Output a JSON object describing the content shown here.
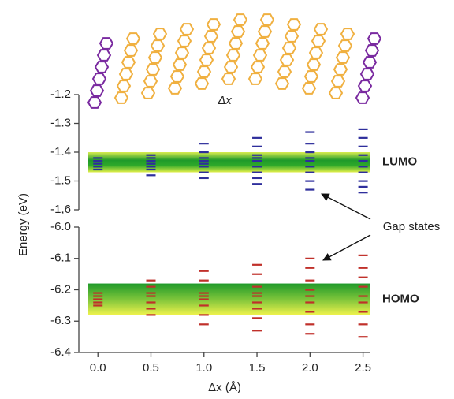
{
  "illustration": {
    "label": "Δx"
  },
  "chart_data": [
    {
      "type": "scatter",
      "ylabel": "Energy (eV)",
      "annotation": "Gap states",
      "band": [
        -1.47,
        -1.4
      ],
      "band_label": "LUMO",
      "color": "#2e2e9c",
      "xlim": [
        -0.18,
        2.57
      ],
      "ylim": [
        -1.6,
        -1.2
      ],
      "yticks": [
        -1.2,
        -1.3,
        -1.4,
        -1.5,
        {
          "value": -1.6,
          "label": "-1,6"
        }
      ],
      "x": [
        0,
        0,
        0,
        0,
        0,
        0.5,
        0.5,
        0.5,
        0.5,
        0.5,
        0.5,
        0.5,
        1,
        1,
        1,
        1,
        1,
        1,
        1,
        1,
        1.5,
        1.5,
        1.5,
        1.5,
        1.5,
        1.5,
        1.5,
        1.5,
        1.5,
        2,
        2,
        2,
        2,
        2,
        2,
        2,
        2,
        2,
        2.5,
        2.5,
        2.5,
        2.5,
        2.5,
        2.5,
        2.5,
        2.5,
        2.5,
        2.5
      ],
      "y": [
        -1.42,
        -1.43,
        -1.44,
        -1.45,
        -1.46,
        -1.41,
        -1.42,
        -1.43,
        -1.44,
        -1.45,
        -1.46,
        -1.48,
        -1.37,
        -1.4,
        -1.42,
        -1.43,
        -1.44,
        -1.45,
        -1.47,
        -1.49,
        -1.35,
        -1.38,
        -1.41,
        -1.42,
        -1.43,
        -1.45,
        -1.47,
        -1.49,
        -1.51,
        -1.33,
        -1.37,
        -1.4,
        -1.42,
        -1.43,
        -1.45,
        -1.47,
        -1.5,
        -1.53,
        -1.32,
        -1.35,
        -1.38,
        -1.41,
        -1.43,
        -1.45,
        -1.47,
        -1.5,
        -1.52,
        -1.54
      ]
    },
    {
      "type": "scatter",
      "xlabel": "Δx (Å)",
      "band": [
        -6.28,
        -6.18
      ],
      "band_label": "HOMO",
      "color": "#c0302a",
      "xlim": [
        -0.18,
        2.57
      ],
      "ylim": [
        -6.4,
        -6.0
      ],
      "xticks": [
        {
          "value": 0,
          "label": "0.0"
        },
        0.5,
        {
          "value": 1,
          "label": "1.0"
        },
        1.5,
        {
          "value": 2,
          "label": "2.0"
        },
        2.5
      ],
      "yticks": [
        {
          "value": -6,
          "label": "-6.0"
        },
        -6.1,
        -6.2,
        -6.3,
        -6.4
      ],
      "x": [
        0,
        0,
        0,
        0,
        0,
        0.5,
        0.5,
        0.5,
        0.5,
        0.5,
        0.5,
        0.5,
        1,
        1,
        1,
        1,
        1,
        1,
        1,
        1,
        1.5,
        1.5,
        1.5,
        1.5,
        1.5,
        1.5,
        1.5,
        1.5,
        1.5,
        2,
        2,
        2,
        2,
        2,
        2,
        2,
        2,
        2,
        2.5,
        2.5,
        2.5,
        2.5,
        2.5,
        2.5,
        2.5,
        2.5,
        2.5
      ],
      "y": [
        -6.21,
        -6.22,
        -6.23,
        -6.24,
        -6.25,
        -6.17,
        -6.19,
        -6.21,
        -6.22,
        -6.24,
        -6.26,
        -6.28,
        -6.14,
        -6.17,
        -6.21,
        -6.22,
        -6.23,
        -6.25,
        -6.28,
        -6.31,
        -6.12,
        -6.15,
        -6.19,
        -6.21,
        -6.22,
        -6.24,
        -6.26,
        -6.29,
        -6.33,
        -6.1,
        -6.13,
        -6.17,
        -6.2,
        -6.22,
        -6.24,
        -6.27,
        -6.31,
        -6.34,
        -6.09,
        -6.13,
        -6.16,
        -6.19,
        -6.22,
        -6.24,
        -6.27,
        -6.31,
        -6.35
      ]
    }
  ]
}
